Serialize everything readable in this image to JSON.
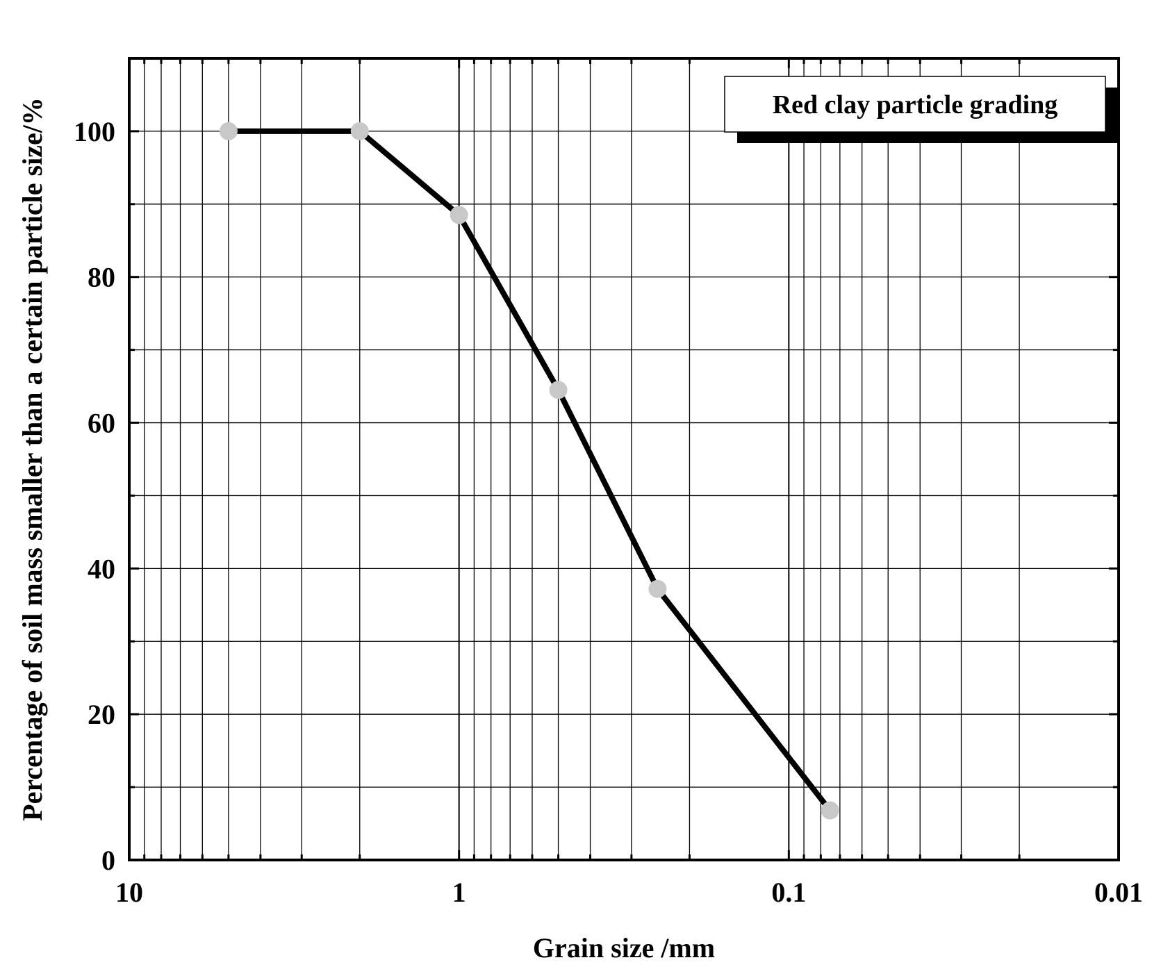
{
  "chart_data": {
    "type": "line",
    "title": "",
    "xlabel": "Grain size /mm",
    "ylabel": "Percentage of soil mass smaller than a certain particle size/%",
    "x_scale": "log",
    "x_reversed": true,
    "xlim": [
      10,
      0.01
    ],
    "ylim": [
      0,
      110
    ],
    "x_ticks": [
      {
        "value": 10,
        "label": "10"
      },
      {
        "value": 1,
        "label": "1"
      },
      {
        "value": 0.1,
        "label": "0.1"
      },
      {
        "value": 0.01,
        "label": "0.01"
      }
    ],
    "y_ticks": [
      {
        "value": 0,
        "label": "0"
      },
      {
        "value": 20,
        "label": "20"
      },
      {
        "value": 40,
        "label": "40"
      },
      {
        "value": 60,
        "label": "60"
      },
      {
        "value": 80,
        "label": "80"
      },
      {
        "value": 100,
        "label": "100"
      }
    ],
    "grid": true,
    "legend_position": "top-right",
    "series": [
      {
        "name": "Red clay particle grading",
        "color": "#000000",
        "marker_color": "#c8c8c8",
        "x": [
          5,
          2,
          1,
          0.5,
          0.25,
          0.075
        ],
        "y": [
          100,
          100,
          88.5,
          64.5,
          37.2,
          6.8
        ]
      }
    ]
  }
}
